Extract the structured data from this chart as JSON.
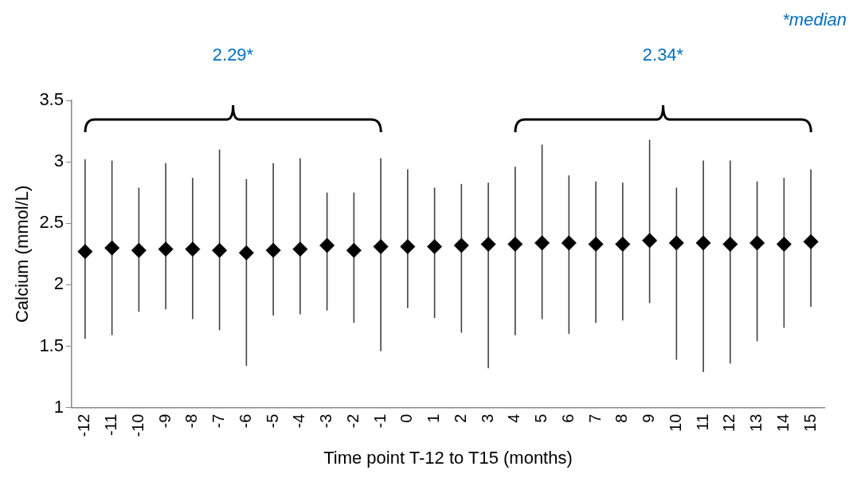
{
  "chart_data": {
    "type": "scatter",
    "xlabel": "Time point T-12 to T15 (months)",
    "ylabel": "Calcium (mmol/L)",
    "categories": [
      "-12",
      "-11",
      "-10",
      "-9",
      "-8",
      "-7",
      "-6",
      "-5",
      "-4",
      "-3",
      "-2",
      "-1",
      "0",
      "1",
      "2",
      "3",
      "4",
      "5",
      "6",
      "7",
      "8",
      "9",
      "10",
      "11",
      "12",
      "13",
      "14",
      "15"
    ],
    "values": [
      2.27,
      2.3,
      2.28,
      2.29,
      2.29,
      2.28,
      2.26,
      2.28,
      2.29,
      2.32,
      2.28,
      2.31,
      2.31,
      2.31,
      2.32,
      2.33,
      2.33,
      2.34,
      2.34,
      2.33,
      2.33,
      2.36,
      2.34,
      2.34,
      2.33,
      2.34,
      2.33,
      2.35
    ],
    "errors": [
      [
        1.56,
        3.02
      ],
      [
        1.59,
        3.01
      ],
      [
        1.78,
        2.79
      ],
      [
        1.8,
        2.99
      ],
      [
        1.72,
        2.87
      ],
      [
        1.63,
        3.1
      ],
      [
        1.34,
        2.86
      ],
      [
        1.75,
        2.99
      ],
      [
        1.76,
        3.03
      ],
      [
        1.79,
        2.75
      ],
      [
        1.69,
        2.75
      ],
      [
        1.46,
        3.03
      ],
      [
        1.81,
        2.94
      ],
      [
        1.73,
        2.79
      ],
      [
        1.61,
        2.82
      ],
      [
        1.32,
        2.83
      ],
      [
        1.59,
        2.96
      ],
      [
        1.72,
        3.14
      ],
      [
        1.6,
        2.89
      ],
      [
        1.69,
        2.84
      ],
      [
        1.71,
        2.83
      ],
      [
        1.85,
        3.18
      ],
      [
        1.39,
        2.79
      ],
      [
        1.29,
        3.01
      ],
      [
        1.36,
        3.01
      ],
      [
        1.54,
        2.84
      ],
      [
        1.65,
        2.87
      ],
      [
        1.82,
        2.94
      ]
    ],
    "color": "#000000",
    "marker": "diamond",
    "ylim": [
      1,
      3.5
    ],
    "yticks": [
      1,
      1.5,
      2,
      2.5,
      3,
      3.5
    ],
    "grid": false,
    "legend": false,
    "annotations": [
      "2.29*",
      "2.34*",
      "*median"
    ]
  }
}
